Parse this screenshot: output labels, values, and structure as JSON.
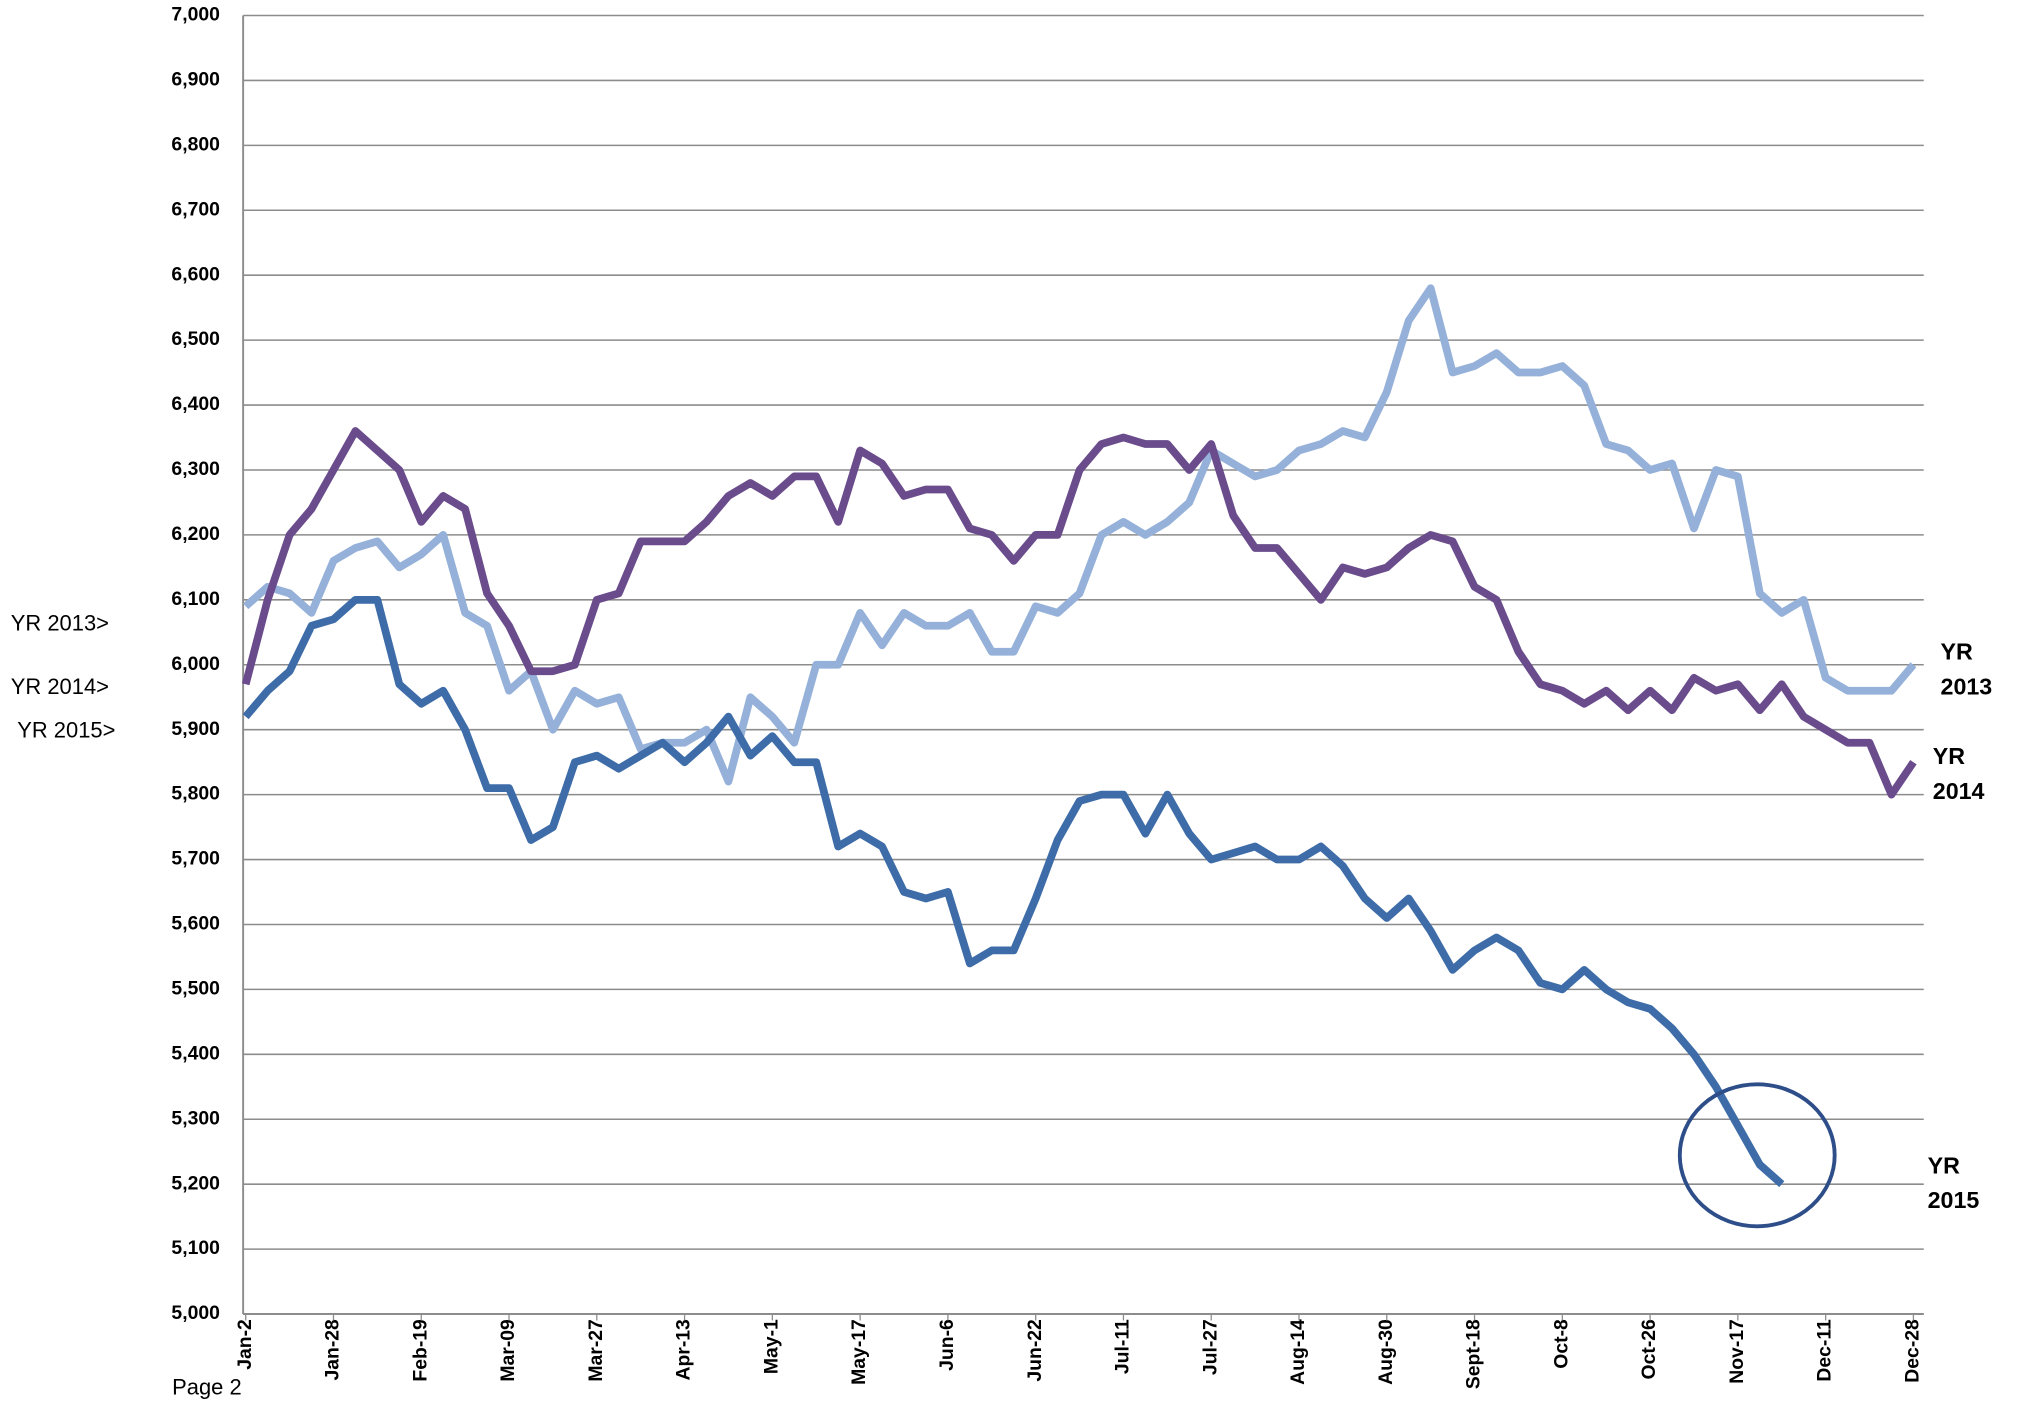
{
  "chart_data": {
    "type": "line",
    "categories": [
      "Jan-2",
      null,
      null,
      null,
      "Jan-28",
      null,
      null,
      null,
      "Feb-19",
      null,
      null,
      null,
      "Mar-09",
      null,
      null,
      null,
      "Mar-27",
      null,
      null,
      null,
      "Apr-13",
      null,
      null,
      null,
      "May-1",
      null,
      null,
      null,
      "May-17",
      null,
      null,
      null,
      "Jun-6",
      null,
      null,
      null,
      "Jun-22",
      null,
      null,
      null,
      "Jul-11",
      null,
      null,
      null,
      "Jul-27",
      null,
      null,
      null,
      "Aug-14",
      null,
      null,
      null,
      "Aug-30",
      null,
      null,
      null,
      "Sept-18",
      null,
      null,
      null,
      "Oct-8",
      null,
      null,
      null,
      "Oct-26",
      null,
      null,
      null,
      "Nov-17",
      null,
      null,
      null,
      "Dec-11",
      null,
      null,
      null,
      "Dec-28"
    ],
    "series": [
      {
        "name": "YR 2013",
        "color": "#95b1d9",
        "values": [
          6090,
          6120,
          6110,
          6080,
          6160,
          6180,
          6190,
          6150,
          6170,
          6200,
          6080,
          6060,
          5960,
          5990,
          5900,
          5960,
          5940,
          5950,
          5870,
          5880,
          5880,
          5900,
          5820,
          5950,
          5920,
          5880,
          6000,
          6000,
          6080,
          6030,
          6080,
          6060,
          6060,
          6080,
          6020,
          6020,
          6090,
          6080,
          6110,
          6200,
          6220,
          6200,
          6220,
          6250,
          6330,
          6310,
          6290,
          6300,
          6330,
          6340,
          6360,
          6350,
          6420,
          6530,
          6580,
          6450,
          6460,
          6480,
          6450,
          6450,
          6460,
          6430,
          6340,
          6330,
          6300,
          6310,
          6210,
          6300,
          6290,
          6110,
          6080,
          6100,
          5980,
          5960,
          5960,
          5960,
          6000
        ]
      },
      {
        "name": "YR 2014",
        "color": "#6a4c8c",
        "values": [
          5970,
          6100,
          6200,
          6240,
          6300,
          6360,
          6330,
          6300,
          6220,
          6260,
          6240,
          6110,
          6060,
          5990,
          5990,
          6000,
          6100,
          6110,
          6190,
          6190,
          6190,
          6220,
          6260,
          6280,
          6260,
          6290,
          6290,
          6220,
          6330,
          6310,
          6260,
          6270,
          6270,
          6210,
          6200,
          6160,
          6200,
          6200,
          6300,
          6340,
          6350,
          6340,
          6340,
          6300,
          6340,
          6230,
          6180,
          6180,
          6140,
          6100,
          6150,
          6140,
          6150,
          6180,
          6200,
          6190,
          6120,
          6100,
          6020,
          5970,
          5960,
          5940,
          5960,
          5930,
          5960,
          5930,
          5980,
          5960,
          5970,
          5930,
          5970,
          5920,
          5900,
          5880,
          5880,
          5800,
          5850
        ]
      },
      {
        "name": "YR 2015",
        "color": "#3d6ca8",
        "values": [
          5920,
          5960,
          5990,
          6060,
          6070,
          6100,
          6100,
          5970,
          5940,
          5960,
          5900,
          5810,
          5810,
          5730,
          5750,
          5850,
          5860,
          5840,
          5860,
          5880,
          5850,
          5880,
          5920,
          5860,
          5890,
          5850,
          5850,
          5720,
          5740,
          5720,
          5650,
          5640,
          5650,
          5540,
          5560,
          5560,
          5640,
          5730,
          5790,
          5800,
          5800,
          5740,
          5800,
          5740,
          5700,
          5710,
          5720,
          5700,
          5700,
          5720,
          5690,
          5640,
          5610,
          5640,
          5590,
          5530,
          5560,
          5580,
          5560,
          5510,
          5500,
          5530,
          5500,
          5480,
          5470,
          5440,
          5400,
          5350,
          5290,
          5230,
          5200,
          null,
          null,
          null,
          null,
          null,
          null
        ]
      }
    ],
    "annotations": [
      "YR 2013>",
      "YR 2014>",
      "YR 2015>"
    ],
    "ylim": [
      5000,
      7000
    ],
    "yticks": [
      {
        "value": 5000,
        "label": "5,000"
      },
      {
        "value": 5100,
        "label": "5,100"
      },
      {
        "value": 5200,
        "label": "5,200"
      },
      {
        "value": 5300,
        "label": "5,300"
      },
      {
        "value": 5400,
        "label": "5,400"
      },
      {
        "value": 5500,
        "label": "5,500"
      },
      {
        "value": 5600,
        "label": "5,600"
      },
      {
        "value": 5700,
        "label": "5,700"
      },
      {
        "value": 5800,
        "label": "5,800"
      },
      {
        "value": 5900,
        "label": "5,900"
      },
      {
        "value": 6000,
        "label": "6,000"
      },
      {
        "value": 6100,
        "label": "6,100"
      },
      {
        "value": 6200,
        "label": "6,200"
      },
      {
        "value": 6300,
        "label": "6,300"
      },
      {
        "value": 6400,
        "label": "6,400"
      },
      {
        "value": 6500,
        "label": "6,500"
      },
      {
        "value": 6600,
        "label": "6,600"
      },
      {
        "value": 6700,
        "label": "6,700"
      },
      {
        "value": 6800,
        "label": "6,800"
      },
      {
        "value": 6900,
        "label": "6,900"
      },
      {
        "value": 7000,
        "label": "7,000"
      }
    ],
    "grid": true
  },
  "footer": "Page 2"
}
